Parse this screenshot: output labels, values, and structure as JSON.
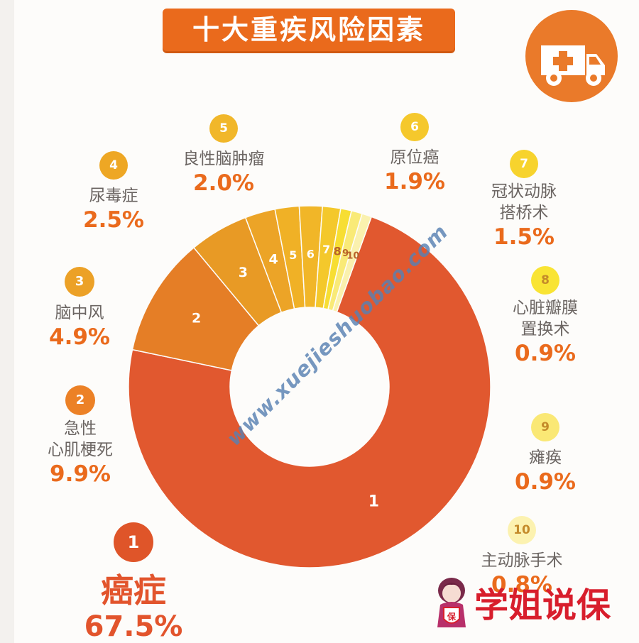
{
  "title": "十大重疾风险因素",
  "colors": {
    "ring": [
      "#e1582f",
      "#e57e26",
      "#e89a25",
      "#eca427",
      "#f0b126",
      "#f1b628",
      "#f4c82b",
      "#f7de33",
      "#f9ea77",
      "#faf1ae"
    ],
    "circle": [
      "#df5529",
      "#ec8126",
      "#eca127",
      "#eea724",
      "#f1b72a",
      "#f5c82c",
      "#f7d32d",
      "#f9e434",
      "#fae875",
      "#fcf2b0"
    ],
    "rank_text_dark": "#c48a2a"
  },
  "chart_data": {
    "type": "donut",
    "title": "十大重疾风险因素",
    "slice_labels": [
      "1",
      "2",
      "3",
      "4",
      "5",
      "6",
      "7",
      "8",
      "9",
      "10"
    ],
    "categories": [
      "癌症",
      "急性心肌梗死",
      "脑中风",
      "尿毒症",
      "良性脑肿瘤",
      "原位癌",
      "冠状动脉搭桥术",
      "心脏瓣膜置换术",
      "瘫痪",
      "主动脉手术"
    ],
    "values": [
      67.5,
      9.9,
      4.9,
      2.5,
      2.0,
      1.9,
      1.5,
      0.9,
      0.9,
      0.8
    ]
  },
  "labels": [
    {
      "rank": "1",
      "lines": [
        "癌症"
      ],
      "value": "67.5%"
    },
    {
      "rank": "2",
      "lines": [
        "急性",
        "心肌梗死"
      ],
      "value": "9.9%"
    },
    {
      "rank": "3",
      "lines": [
        "脑中风"
      ],
      "value": "4.9%"
    },
    {
      "rank": "4",
      "lines": [
        "尿毒症"
      ],
      "value": "2.5%"
    },
    {
      "rank": "5",
      "lines": [
        "良性脑肿瘤"
      ],
      "value": "2.0%"
    },
    {
      "rank": "6",
      "lines": [
        "原位癌"
      ],
      "value": "1.9%"
    },
    {
      "rank": "7",
      "lines": [
        "冠状动脉",
        "搭桥术"
      ],
      "value": "1.5%"
    },
    {
      "rank": "8",
      "lines": [
        "心脏瓣膜",
        "置换术"
      ],
      "value": "0.9%"
    },
    {
      "rank": "9",
      "lines": [
        "瘫痪"
      ],
      "value": "0.9%"
    },
    {
      "rank": "10",
      "lines": [
        "主动脉手术"
      ],
      "value": "0.8%"
    }
  ],
  "watermark": "www.xuejieshuobao.com",
  "brand": {
    "name": "学姐说保",
    "badge_char": "保",
    "color": "#d81e2c"
  },
  "icons": {
    "header": "ambulance-icon",
    "brand": "advisor-avatar-icon"
  }
}
